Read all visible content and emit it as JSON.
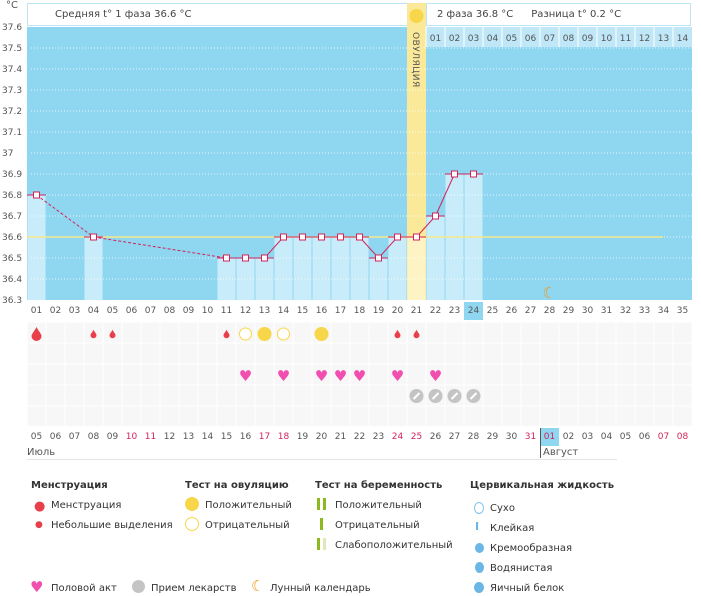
{
  "header": {
    "unit": "°C",
    "phase1": "Средняя t° 1 фаза 36.6 °C",
    "phase2": "2 фаза 36.8 °C",
    "diff": "Разница t° 0.2 °C",
    "ovulation": "ОВУЛЯЦИЯ"
  },
  "colors": {
    "plot": "#8fd6f0",
    "bar": "#c9ecfb",
    "line": "#d2245a",
    "ovulation": "#fbe99a",
    "average": "#f5e98a"
  },
  "chart_data": {
    "type": "line",
    "title": "",
    "ylabel": "°C",
    "ylim": [
      36.3,
      37.6
    ],
    "yticks": [
      "37.6",
      "37.5",
      "37.4",
      "37.3",
      "37.2",
      "37.1",
      "37",
      "36.9",
      "36.8",
      "36.7",
      "36.6",
      "36.5",
      "36.4",
      "36.3"
    ],
    "x": [
      1,
      4,
      11,
      12,
      13,
      14,
      15,
      16,
      17,
      18,
      19,
      20,
      21,
      22,
      23,
      24
    ],
    "values": [
      36.8,
      36.6,
      36.5,
      36.5,
      36.5,
      36.6,
      36.6,
      36.6,
      36.6,
      36.6,
      36.5,
      36.6,
      36.6,
      36.7,
      36.9,
      36.9
    ],
    "dashed_gaps": [
      [
        1,
        4
      ],
      [
        4,
        11
      ]
    ],
    "average": 36.6,
    "ovulation_day": 21,
    "moon_day": 28,
    "next_cycle_days": [
      "01",
      "02",
      "03",
      "04",
      "05",
      "06",
      "07",
      "08",
      "09",
      "10",
      "11",
      "12",
      "13",
      "14"
    ]
  },
  "cycle_days": [
    "01",
    "02",
    "03",
    "04",
    "05",
    "06",
    "07",
    "08",
    "09",
    "10",
    "11",
    "12",
    "13",
    "14",
    "15",
    "16",
    "17",
    "18",
    "19",
    "20",
    "21",
    "22",
    "23",
    "24",
    "25",
    "26",
    "27",
    "28",
    "29",
    "30",
    "31",
    "32",
    "33",
    "34",
    "35"
  ],
  "current_day": 24,
  "dates": [
    "05",
    "06",
    "07",
    "08",
    "09",
    "10",
    "11",
    "12",
    "13",
    "14",
    "15",
    "16",
    "17",
    "18",
    "19",
    "20",
    "21",
    "22",
    "23",
    "24",
    "25",
    "26",
    "27",
    "28",
    "29",
    "30",
    "31",
    "01",
    "02",
    "03",
    "04",
    "05",
    "06",
    "07",
    "08"
  ],
  "weekend_idx": [
    5,
    6,
    12,
    13,
    19,
    20,
    26,
    27,
    33,
    34
  ],
  "months": {
    "m1": "Июль",
    "m2": "Август"
  },
  "marks": {
    "menstruation": [
      1
    ],
    "spotting": [
      4,
      5,
      11,
      20,
      21
    ],
    "ovtest_neg": [
      12,
      14
    ],
    "ovtest_pos": [
      13,
      16
    ],
    "sex": [
      12,
      14,
      16,
      17,
      18,
      20,
      22
    ],
    "pills": [
      21,
      22,
      23,
      24
    ]
  },
  "legend": {
    "menstruation": {
      "title": "Менструация",
      "items": [
        "Менструация",
        "Небольшие выделения"
      ]
    },
    "ovulation_test": {
      "title": "Тест на овуляцию",
      "items": [
        "Положительный",
        "Отрицательный"
      ]
    },
    "pregnancy_test": {
      "title": "Тест на беременность",
      "items": [
        "Положительный",
        "Отрицательный",
        "Слабоположительный"
      ]
    },
    "cervical": {
      "title": "Цервикальная жидкость",
      "items": [
        "Сухо",
        "Клейкая",
        "Кремообразная",
        "Водянистая",
        "Яичный белок"
      ]
    },
    "other": [
      "Половой акт",
      "Прием лекарств",
      "Лунный календарь"
    ]
  }
}
